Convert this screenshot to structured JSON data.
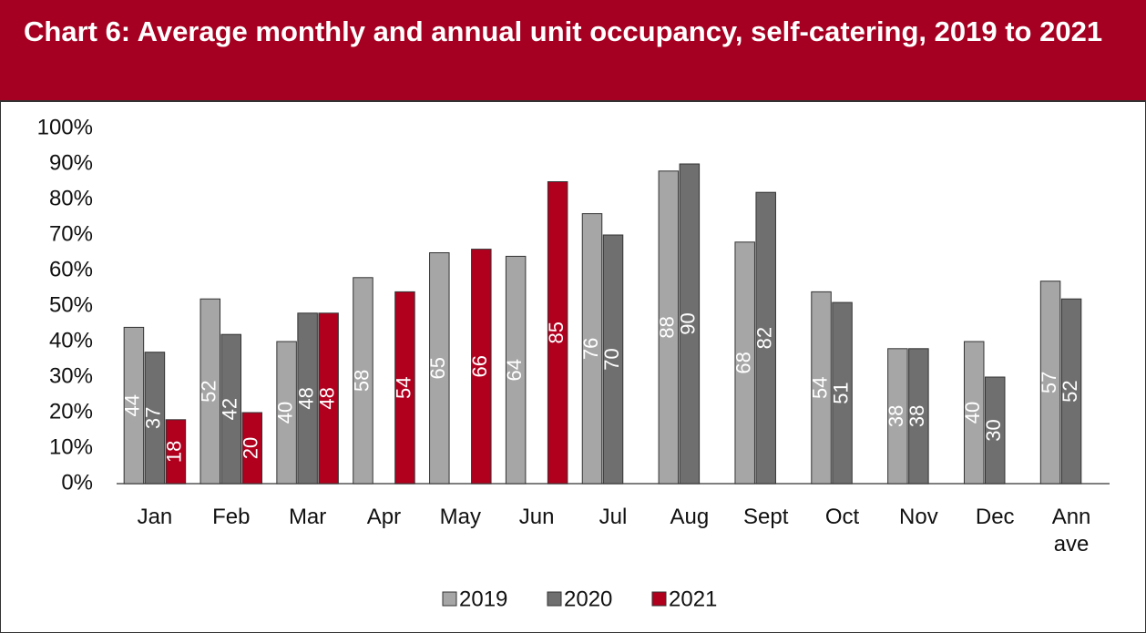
{
  "chart_data": {
    "type": "bar",
    "title": "Chart 6: Average monthly and annual unit occupancy, self-catering, 2019 to 2021",
    "categories": [
      "Jan",
      "Feb",
      "Mar",
      "Apr",
      "May",
      "Jun",
      "Jul",
      "Aug",
      "Sept",
      "Oct",
      "Nov",
      "Dec",
      "Ann ave"
    ],
    "series": [
      {
        "name": "2019",
        "color": "#a6a6a6",
        "values": [
          44,
          52,
          40,
          58,
          65,
          64,
          76,
          88,
          68,
          54,
          38,
          40,
          57
        ]
      },
      {
        "name": "2020",
        "color": "#6f6f6f",
        "values": [
          37,
          42,
          48,
          null,
          null,
          null,
          70,
          90,
          82,
          51,
          38,
          30,
          52
        ]
      },
      {
        "name": "2021",
        "color": "#b0001e",
        "values": [
          18,
          20,
          48,
          54,
          66,
          85,
          null,
          null,
          null,
          null,
          null,
          null,
          null
        ]
      }
    ],
    "ylim": [
      0,
      100
    ],
    "yticks": [
      {
        "value": 0,
        "label": "0%"
      },
      {
        "value": 10,
        "label": "10%"
      },
      {
        "value": 20,
        "label": "20%"
      },
      {
        "value": 30,
        "label": "30%"
      },
      {
        "value": 40,
        "label": "40%"
      },
      {
        "value": 50,
        "label": "50%"
      },
      {
        "value": 60,
        "label": "60%"
      },
      {
        "value": 70,
        "label": "70%"
      },
      {
        "value": 80,
        "label": "80%"
      },
      {
        "value": 90,
        "label": "90%"
      },
      {
        "value": 100,
        "label": "100%"
      }
    ],
    "grid": false,
    "legend": "bottom"
  }
}
